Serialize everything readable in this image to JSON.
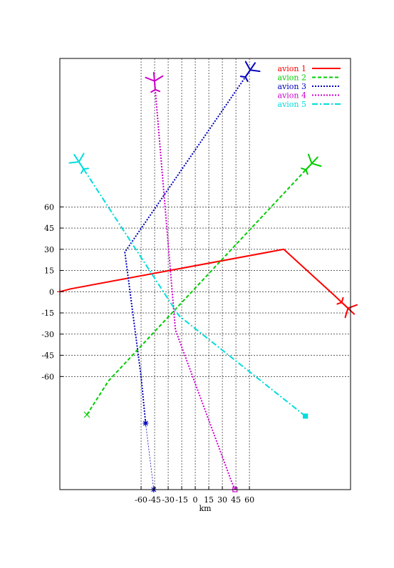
{
  "chart_data": {
    "type": "line",
    "title": "",
    "xlabel": "km",
    "ylabel": "",
    "grid": true,
    "legend_position": "top-right",
    "xticks": [
      -60,
      -45,
      -30,
      -15,
      0,
      15,
      30,
      45,
      60
    ],
    "xtick_labels": [
      "-60",
      "-45",
      "-30",
      "-15",
      "0",
      "15",
      "30",
      "45",
      "60"
    ],
    "yticks": [
      60,
      45,
      30,
      15,
      0,
      -15,
      -30,
      -45,
      -60
    ],
    "ytick_labels": [
      "60",
      "45",
      "30",
      "15",
      "0",
      "-15",
      "-30",
      "-45",
      "-60"
    ],
    "xlim": [
      -150,
      172
    ],
    "ylim": [
      -140,
      165
    ],
    "series": [
      {
        "name": "avion 1",
        "color": "#ff0000",
        "dash": "solid",
        "width": 2,
        "points": [
          [
            -150,
            0
          ],
          [
            -138,
            2
          ],
          [
            98,
            30
          ],
          [
            153,
            -2
          ],
          [
            168,
            -11
          ]
        ],
        "start_marker": "plus",
        "end_marker": "aircraft"
      },
      {
        "name": "avion 2",
        "color": "#00cc00",
        "dash": "dashed",
        "width": 2,
        "points": [
          [
            -120,
            -87
          ],
          [
            -96,
            -63
          ],
          [
            128,
            90
          ]
        ],
        "start_marker": "cross",
        "end_marker": "aircraft"
      },
      {
        "name": "avion 3",
        "color": "#0000bb",
        "dash": "dotted",
        "width": 2,
        "points": [
          [
            -55,
            -93
          ],
          [
            -60,
            -60
          ],
          [
            -78,
            28
          ],
          [
            60,
            156
          ]
        ],
        "start_marker": "star",
        "tail_points": [
          [
            -55,
            -93
          ],
          [
            -46,
            -140
          ]
        ],
        "end_marker": "aircraft"
      },
      {
        "name": "avion 4",
        "color": "#cc00cc",
        "dash": "dotted",
        "width": 2,
        "points": [
          [
            44,
            -140
          ],
          [
            40,
            -134
          ],
          [
            -22,
            -27
          ],
          [
            -45,
            148
          ]
        ],
        "start_marker": "square",
        "end_marker": "aircraft"
      },
      {
        "name": "avion 5",
        "color": "#00dddd",
        "dash": "dashdot",
        "width": 2,
        "points": [
          [
            122,
            -88
          ],
          [
            116,
            -85
          ],
          [
            -18,
            -17
          ],
          [
            -128,
            91
          ]
        ],
        "start_marker": "filled-square",
        "end_marker": "aircraft"
      }
    ]
  }
}
